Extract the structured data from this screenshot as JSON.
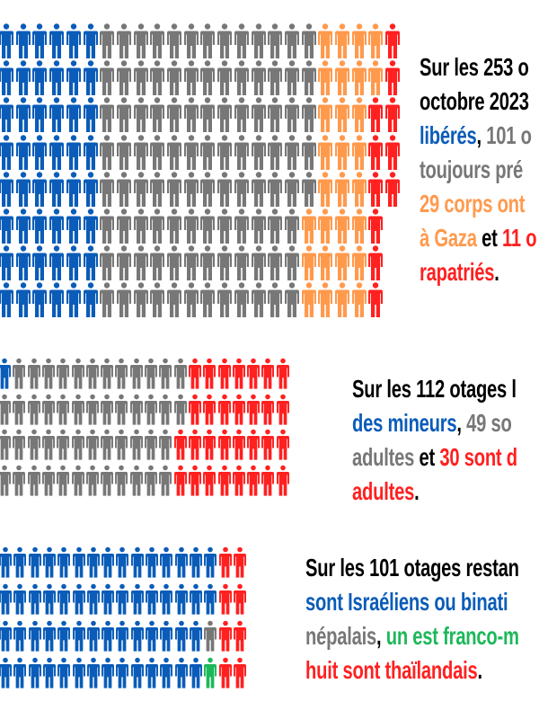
{
  "colors": {
    "blue": "#0a5cb8",
    "gray": "#777777",
    "orange": "#ff9a4d",
    "red": "#ff2020",
    "green": "#1db85a",
    "black": "#000000"
  },
  "sections": [
    {
      "id": "released-deceased",
      "rows": [
        [
          [
            "blue",
            6
          ],
          [
            "gray",
            13
          ],
          [
            "orange",
            4
          ],
          [
            "red",
            1
          ]
        ],
        [
          [
            "blue",
            6
          ],
          [
            "gray",
            13
          ],
          [
            "orange",
            4
          ],
          [
            "red",
            1
          ]
        ],
        [
          [
            "blue",
            6
          ],
          [
            "gray",
            13
          ],
          [
            "orange",
            3
          ],
          [
            "red",
            2
          ]
        ],
        [
          [
            "blue",
            6
          ],
          [
            "gray",
            13
          ],
          [
            "orange",
            3
          ],
          [
            "red",
            2
          ]
        ],
        [
          [
            "blue",
            6
          ],
          [
            "gray",
            13
          ],
          [
            "orange",
            3
          ],
          [
            "red",
            2
          ]
        ],
        [
          [
            "blue",
            6
          ],
          [
            "gray",
            12
          ],
          [
            "orange",
            4
          ],
          [
            "red",
            1
          ]
        ],
        [
          [
            "blue",
            6
          ],
          [
            "gray",
            12
          ],
          [
            "orange",
            4
          ],
          [
            "red",
            1
          ]
        ],
        [
          [
            "blue",
            6
          ],
          [
            "gray",
            12
          ],
          [
            "orange",
            4
          ],
          [
            "red",
            1
          ]
        ]
      ],
      "lines": [
        [
          {
            "t": "Sur les 253 o",
            "c": "black"
          }
        ],
        [
          {
            "t": "octobre 2023",
            "c": "black"
          }
        ],
        [
          {
            "t": "libérés",
            "c": "blue"
          },
          {
            "t": ", ",
            "c": "black"
          },
          {
            "t": "101 o",
            "c": "gray"
          }
        ],
        [
          {
            "t": "toujours pré",
            "c": "gray"
          }
        ],
        [
          {
            "t": "29 corps ont",
            "c": "orange"
          }
        ],
        [
          {
            "t": "à Gaza",
            "c": "orange"
          },
          {
            "t": " et ",
            "c": "black"
          },
          {
            "t": "11 o",
            "c": "red"
          }
        ],
        [
          {
            "t": "rapatriés",
            "c": "red"
          },
          {
            "t": ".",
            "c": "black"
          }
        ]
      ]
    },
    {
      "id": "released-by-age",
      "rows": [
        [
          [
            "blue",
            1
          ],
          [
            "gray",
            12
          ],
          [
            "red",
            7
          ]
        ],
        [
          [
            "gray",
            13
          ],
          [
            "red",
            7
          ]
        ],
        [
          [
            "gray",
            12
          ],
          [
            "red",
            8
          ]
        ],
        [
          [
            "gray",
            12
          ],
          [
            "red",
            8
          ]
        ]
      ],
      "lines": [
        [
          {
            "t": "Sur les 112 otages l",
            "c": "black"
          }
        ],
        [
          {
            "t": "des mineurs",
            "c": "blue"
          },
          {
            "t": ", ",
            "c": "black"
          },
          {
            "t": "49 so",
            "c": "gray"
          }
        ],
        [
          {
            "t": "adultes",
            "c": "gray"
          },
          {
            "t": " et ",
            "c": "black"
          },
          {
            "t": "30 sont d",
            "c": "red"
          }
        ],
        [
          {
            "t": "adultes",
            "c": "red"
          },
          {
            "t": ".",
            "c": "black"
          }
        ]
      ]
    },
    {
      "id": "remaining-by-nationality",
      "rows": [
        [
          [
            "blue",
            15
          ],
          [
            "red",
            2
          ]
        ],
        [
          [
            "blue",
            15
          ],
          [
            "red",
            2
          ]
        ],
        [
          [
            "blue",
            14
          ],
          [
            "gray",
            1
          ],
          [
            "red",
            2
          ]
        ],
        [
          [
            "blue",
            14
          ],
          [
            "green",
            1
          ],
          [
            "red",
            2
          ]
        ]
      ],
      "lines": [
        [
          {
            "t": "Sur les 101 otages restan",
            "c": "black"
          }
        ],
        [
          {
            "t": "sont Israéliens ou binati",
            "c": "blue"
          }
        ],
        [
          {
            "t": "népalais",
            "c": "gray"
          },
          {
            "t": ", ",
            "c": "black"
          },
          {
            "t": "un est franco-m",
            "c": "green"
          }
        ],
        [
          {
            "t": "huit sont thaïlandais",
            "c": "red"
          },
          {
            "t": ".",
            "c": "black"
          }
        ]
      ]
    }
  ]
}
